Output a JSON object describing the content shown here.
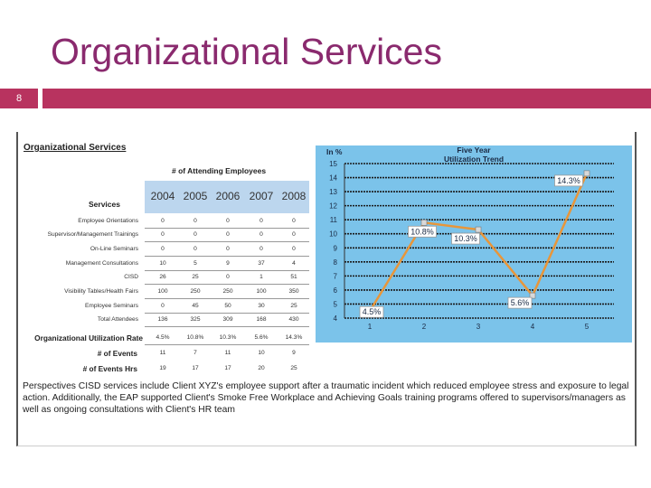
{
  "slide": {
    "title": "Organizational Services",
    "number": "8"
  },
  "table": {
    "title": "Organizational Services",
    "attending_header": "# of Attending Employees",
    "services_header": "Services",
    "years": [
      "2004",
      "2005",
      "2006",
      "2007",
      "2008"
    ],
    "rows": [
      {
        "label": "Employee Orientations",
        "values": [
          "0",
          "0",
          "0",
          "0",
          "0"
        ]
      },
      {
        "label": "Supervisor/Management Trainings",
        "values": [
          "0",
          "0",
          "0",
          "0",
          "0"
        ]
      },
      {
        "label": "On-Line Seminars",
        "values": [
          "0",
          "0",
          "0",
          "0",
          "0"
        ]
      },
      {
        "label": "Management Consultations",
        "values": [
          "10",
          "5",
          "9",
          "37",
          "4"
        ]
      },
      {
        "label": "CISD",
        "values": [
          "26",
          "25",
          "0",
          "1",
          "51"
        ]
      },
      {
        "label": "Visibility Tables/Health Fairs",
        "values": [
          "100",
          "250",
          "250",
          "100",
          "350"
        ]
      },
      {
        "label": "Employee Seminars",
        "values": [
          "0",
          "45",
          "50",
          "30",
          "25"
        ]
      },
      {
        "label": "Total Attendees",
        "values": [
          "136",
          "325",
          "309",
          "168",
          "430"
        ]
      }
    ],
    "summary": [
      {
        "label": "Organizational Utilization Rate",
        "values": [
          "4.5%",
          "10.8%",
          "10.3%",
          "5.6%",
          "14.3%"
        ]
      },
      {
        "label": "# of Events",
        "values": [
          "11",
          "7",
          "11",
          "10",
          "9"
        ]
      },
      {
        "label": "# of Events Hrs",
        "values": [
          "19",
          "17",
          "17",
          "20",
          "25"
        ]
      }
    ]
  },
  "chart_data": {
    "type": "line",
    "title": "Five Year Utilization Trend",
    "ylabel": "In %",
    "x": [
      1,
      2,
      3,
      4,
      5
    ],
    "series": [
      {
        "values": [
          4.5,
          10.8,
          10.3,
          5.6,
          14.3
        ]
      }
    ],
    "data_labels": [
      "4.5%",
      "10.8%",
      "10.3%",
      "5.6%",
      "14.3%"
    ],
    "ylim": [
      4,
      15
    ],
    "yticks": [
      4,
      5,
      6,
      7,
      8,
      9,
      10,
      11,
      12,
      13,
      14,
      15
    ],
    "xticks": [
      "1",
      "2",
      "3",
      "4",
      "5"
    ],
    "grid": true,
    "colors": {
      "background": "#7bc3ea",
      "line": "#e8963a",
      "grid": "#1a1a1a",
      "marker": "#d9d9d9"
    }
  },
  "paragraph": "Perspectives CISD services include Client XYZ's employee support after a traumatic incident which reduced employee stress and exposure to legal action. Additionally, the EAP supported Client's Smoke Free Workplace and Achieving Goals training programs offered to supervisors/managers as well as ongoing consultations with Client's HR team"
}
